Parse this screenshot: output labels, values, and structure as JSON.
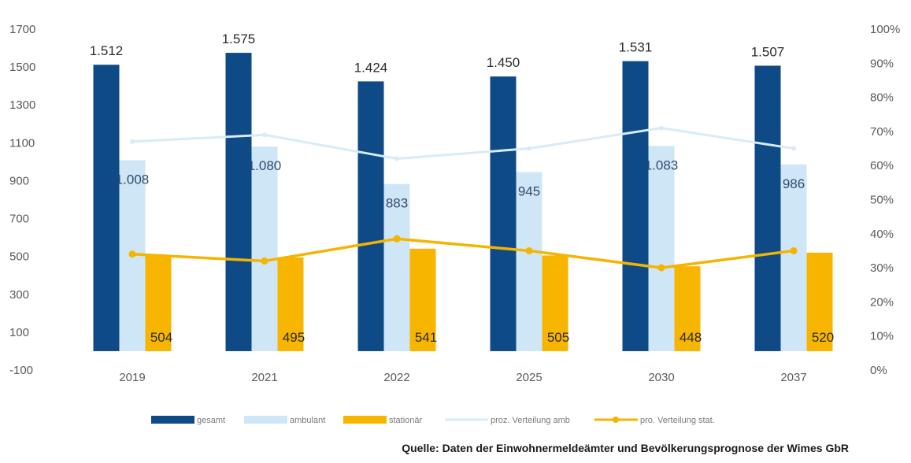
{
  "chart_data": {
    "type": "bar",
    "categories": [
      "2019",
      "2021",
      "2022",
      "2025",
      "2030",
      "2037"
    ],
    "series": [
      {
        "name": "gesamt",
        "kind": "bar",
        "axis": "left",
        "color": "#0e4a86",
        "values": [
          1512,
          1575,
          1424,
          1450,
          1531,
          1507
        ],
        "labels": [
          "1.512",
          "1.575",
          "1.424",
          "1.450",
          "1.531",
          "1.507"
        ]
      },
      {
        "name": "ambulant",
        "kind": "bar",
        "axis": "left",
        "color": "#cfe6f7",
        "values": [
          1008,
          1080,
          883,
          945,
          1083,
          986
        ],
        "labels": [
          "1.008",
          "1.080",
          "883",
          "945",
          "1.083",
          "986"
        ]
      },
      {
        "name": "stationär",
        "kind": "bar",
        "axis": "left",
        "color": "#f7b500",
        "values": [
          504,
          495,
          541,
          505,
          448,
          520
        ],
        "labels": [
          "504",
          "495",
          "541",
          "505",
          "448",
          "520"
        ]
      },
      {
        "name": "proz. Verteilung amb",
        "kind": "line",
        "axis": "right",
        "color": "#d7ebf9",
        "values": [
          67,
          69,
          62,
          65,
          71,
          65
        ]
      },
      {
        "name": "pro. Verteilung stat.",
        "kind": "line",
        "axis": "right",
        "color": "#f5b400",
        "values": [
          34,
          32,
          38.5,
          35,
          30,
          35
        ]
      }
    ],
    "y_left": {
      "min": -100,
      "max": 1700,
      "ticks": [
        "1700",
        "1500",
        "1300",
        "1100",
        "900",
        "700",
        "500",
        "300",
        "100",
        "-100"
      ]
    },
    "y_right": {
      "min": 0,
      "max": 100,
      "ticks": [
        "100%",
        "90%",
        "80%",
        "70%",
        "60%",
        "50%",
        "40%",
        "30%",
        "20%",
        "10%",
        "0%"
      ]
    },
    "legend": {
      "position": "bottom",
      "items": [
        "gesamt",
        "ambulant",
        "stationär",
        "proz. Verteilung amb",
        "pro. Verteilung stat."
      ]
    },
    "grid": false,
    "source": "Quelle: Daten der Einwohnermeldeämter und Bevölkerungsprognose der Wimes GbR"
  }
}
